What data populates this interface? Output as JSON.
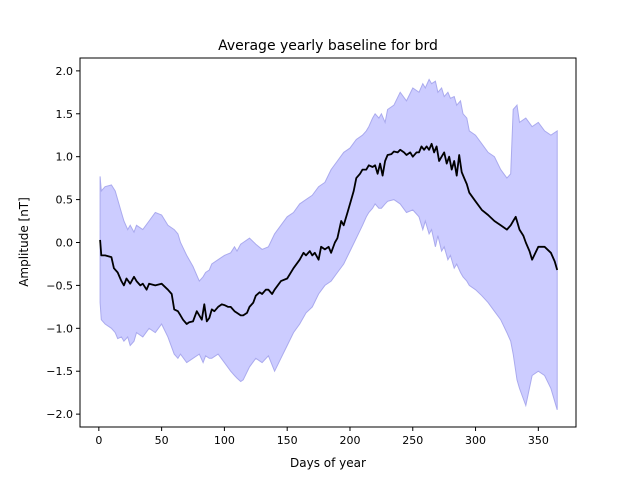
{
  "chart_data": {
    "type": "line",
    "title": "Average yearly baseline for brd",
    "xlabel": "Days of year",
    "ylabel": "Amplitude [nT]",
    "xlim": [
      -15,
      380
    ],
    "ylim": [
      -2.15,
      2.15
    ],
    "xticks": [
      0,
      50,
      100,
      150,
      200,
      250,
      300,
      350
    ],
    "xtick_labels": [
      "0",
      "50",
      "100",
      "150",
      "200",
      "250",
      "300",
      "350"
    ],
    "yticks": [
      -2.0,
      -1.5,
      -1.0,
      -0.5,
      0.0,
      0.5,
      1.0,
      1.5,
      2.0
    ],
    "ytick_labels": [
      "−2.0",
      "−1.5",
      "−1.0",
      "−0.5",
      "0.0",
      "0.5",
      "1.0",
      "1.5",
      "2.0"
    ],
    "grid": false,
    "colors": {
      "mean_line": "#000000",
      "band_fill": "#ccccff",
      "band_edge": "#aaaaee"
    },
    "series": [
      {
        "kind": "line",
        "x": [
          1,
          2,
          5,
          10,
          12,
          15,
          18,
          20,
          22,
          25,
          28,
          30,
          33,
          35,
          38,
          40,
          45,
          50,
          55,
          58,
          60,
          63,
          65,
          67,
          70,
          72,
          75,
          78,
          80,
          82,
          84,
          86,
          88,
          90,
          92,
          95,
          98,
          100,
          103,
          105,
          108,
          110,
          113,
          115,
          118,
          120,
          123,
          125,
          128,
          130,
          133,
          135,
          138,
          140,
          145,
          150,
          155,
          160,
          163,
          165,
          168,
          170,
          172,
          175,
          177,
          180,
          183,
          185,
          188,
          190,
          193,
          195,
          198,
          200,
          203,
          205,
          208,
          210,
          213,
          215,
          218,
          220,
          222,
          224,
          226,
          228,
          230,
          233,
          235,
          238,
          240,
          243,
          245,
          248,
          250,
          253,
          255,
          257,
          259,
          261,
          263,
          265,
          267,
          269,
          271,
          273,
          275,
          277,
          279,
          281,
          283,
          285,
          287,
          289,
          291,
          293,
          295,
          300,
          305,
          310,
          315,
          320,
          325,
          328,
          330,
          332,
          335,
          338,
          340,
          343,
          345,
          350,
          355,
          360,
          363,
          365
        ],
        "y": [
          0.03,
          -0.15,
          -0.15,
          -0.17,
          -0.3,
          -0.35,
          -0.45,
          -0.5,
          -0.42,
          -0.48,
          -0.4,
          -0.45,
          -0.5,
          -0.48,
          -0.55,
          -0.48,
          -0.5,
          -0.48,
          -0.55,
          -0.6,
          -0.78,
          -0.8,
          -0.85,
          -0.9,
          -0.95,
          -0.93,
          -0.92,
          -0.8,
          -0.85,
          -0.9,
          -0.72,
          -0.92,
          -0.88,
          -0.78,
          -0.8,
          -0.75,
          -0.72,
          -0.73,
          -0.75,
          -0.75,
          -0.8,
          -0.82,
          -0.85,
          -0.85,
          -0.82,
          -0.75,
          -0.7,
          -0.62,
          -0.58,
          -0.6,
          -0.55,
          -0.55,
          -0.6,
          -0.55,
          -0.45,
          -0.42,
          -0.3,
          -0.2,
          -0.12,
          -0.15,
          -0.1,
          -0.15,
          -0.12,
          -0.2,
          -0.05,
          -0.08,
          -0.05,
          -0.12,
          0.0,
          0.05,
          0.25,
          0.2,
          0.35,
          0.45,
          0.6,
          0.75,
          0.8,
          0.85,
          0.85,
          0.9,
          0.88,
          0.9,
          0.8,
          0.92,
          0.78,
          0.95,
          1.02,
          1.03,
          1.06,
          1.05,
          1.08,
          1.05,
          1.02,
          1.05,
          1.0,
          1.05,
          1.05,
          1.12,
          1.08,
          1.12,
          1.08,
          1.15,
          1.05,
          1.12,
          0.95,
          1.0,
          1.05,
          0.92,
          1.0,
          0.85,
          0.95,
          0.78,
          1.02,
          0.82,
          0.75,
          0.68,
          0.58,
          0.48,
          0.38,
          0.32,
          0.25,
          0.2,
          0.15,
          0.2,
          0.25,
          0.3,
          0.15,
          0.08,
          0.0,
          -0.1,
          -0.2,
          -0.05,
          -0.05,
          -0.12,
          -0.22,
          -0.32
        ]
      },
      {
        "kind": "band",
        "x": [
          1,
          2,
          5,
          10,
          13,
          15,
          18,
          20,
          23,
          25,
          28,
          30,
          35,
          40,
          45,
          50,
          55,
          60,
          63,
          65,
          70,
          75,
          80,
          83,
          85,
          88,
          90,
          95,
          100,
          105,
          108,
          110,
          113,
          115,
          120,
          125,
          130,
          135,
          140,
          145,
          150,
          155,
          160,
          165,
          170,
          175,
          180,
          185,
          190,
          195,
          200,
          205,
          210,
          213,
          215,
          218,
          220,
          223,
          225,
          228,
          230,
          235,
          240,
          245,
          250,
          255,
          258,
          260,
          263,
          265,
          268,
          270,
          273,
          275,
          278,
          280,
          283,
          285,
          288,
          290,
          293,
          295,
          300,
          305,
          310,
          315,
          320,
          325,
          328,
          330,
          333,
          335,
          340,
          345,
          350,
          355,
          360,
          365
        ],
        "upper": [
          0.77,
          0.6,
          0.65,
          0.67,
          0.6,
          0.5,
          0.35,
          0.25,
          0.15,
          0.2,
          0.12,
          0.2,
          0.15,
          0.25,
          0.35,
          0.32,
          0.2,
          0.15,
          0.1,
          0.0,
          -0.15,
          -0.28,
          -0.45,
          -0.4,
          -0.35,
          -0.32,
          -0.25,
          -0.2,
          -0.15,
          -0.12,
          -0.05,
          -0.1,
          -0.02,
          0.0,
          0.05,
          -0.02,
          -0.08,
          -0.05,
          0.1,
          0.2,
          0.3,
          0.35,
          0.45,
          0.5,
          0.55,
          0.65,
          0.7,
          0.85,
          0.95,
          1.05,
          1.1,
          1.2,
          1.25,
          1.3,
          1.35,
          1.45,
          1.5,
          1.45,
          1.5,
          1.4,
          1.55,
          1.6,
          1.75,
          1.65,
          1.8,
          1.75,
          1.85,
          1.8,
          1.9,
          1.85,
          1.88,
          1.75,
          1.8,
          1.7,
          1.75,
          1.68,
          1.7,
          1.6,
          1.65,
          1.5,
          1.45,
          1.3,
          1.25,
          1.15,
          1.05,
          1.0,
          0.85,
          0.75,
          0.8,
          1.55,
          1.6,
          1.4,
          1.45,
          1.35,
          1.4,
          1.3,
          1.25,
          1.3
        ],
        "lower": [
          -0.7,
          -0.9,
          -0.95,
          -1.0,
          -1.05,
          -1.12,
          -1.1,
          -1.15,
          -1.1,
          -1.2,
          -1.15,
          -1.05,
          -1.1,
          -1.0,
          -1.05,
          -0.95,
          -1.1,
          -1.3,
          -1.35,
          -1.3,
          -1.4,
          -1.35,
          -1.3,
          -1.4,
          -1.32,
          -1.35,
          -1.35,
          -1.3,
          -1.4,
          -1.5,
          -1.55,
          -1.58,
          -1.62,
          -1.6,
          -1.45,
          -1.35,
          -1.4,
          -1.32,
          -1.5,
          -1.35,
          -1.2,
          -1.05,
          -0.95,
          -0.82,
          -0.75,
          -0.6,
          -0.5,
          -0.45,
          -0.35,
          -0.25,
          -0.1,
          0.05,
          0.2,
          0.3,
          0.35,
          0.4,
          0.45,
          0.4,
          0.4,
          0.45,
          0.48,
          0.5,
          0.45,
          0.35,
          0.38,
          0.3,
          0.15,
          0.25,
          0.1,
          0.15,
          -0.05,
          0.08,
          -0.1,
          -0.05,
          -0.2,
          -0.15,
          -0.3,
          -0.25,
          -0.35,
          -0.4,
          -0.45,
          -0.5,
          -0.55,
          -0.62,
          -0.7,
          -0.8,
          -0.9,
          -1.05,
          -1.15,
          -1.3,
          -1.6,
          -1.7,
          -1.9,
          -1.55,
          -1.5,
          -1.55,
          -1.7,
          -1.95
        ]
      }
    ]
  }
}
